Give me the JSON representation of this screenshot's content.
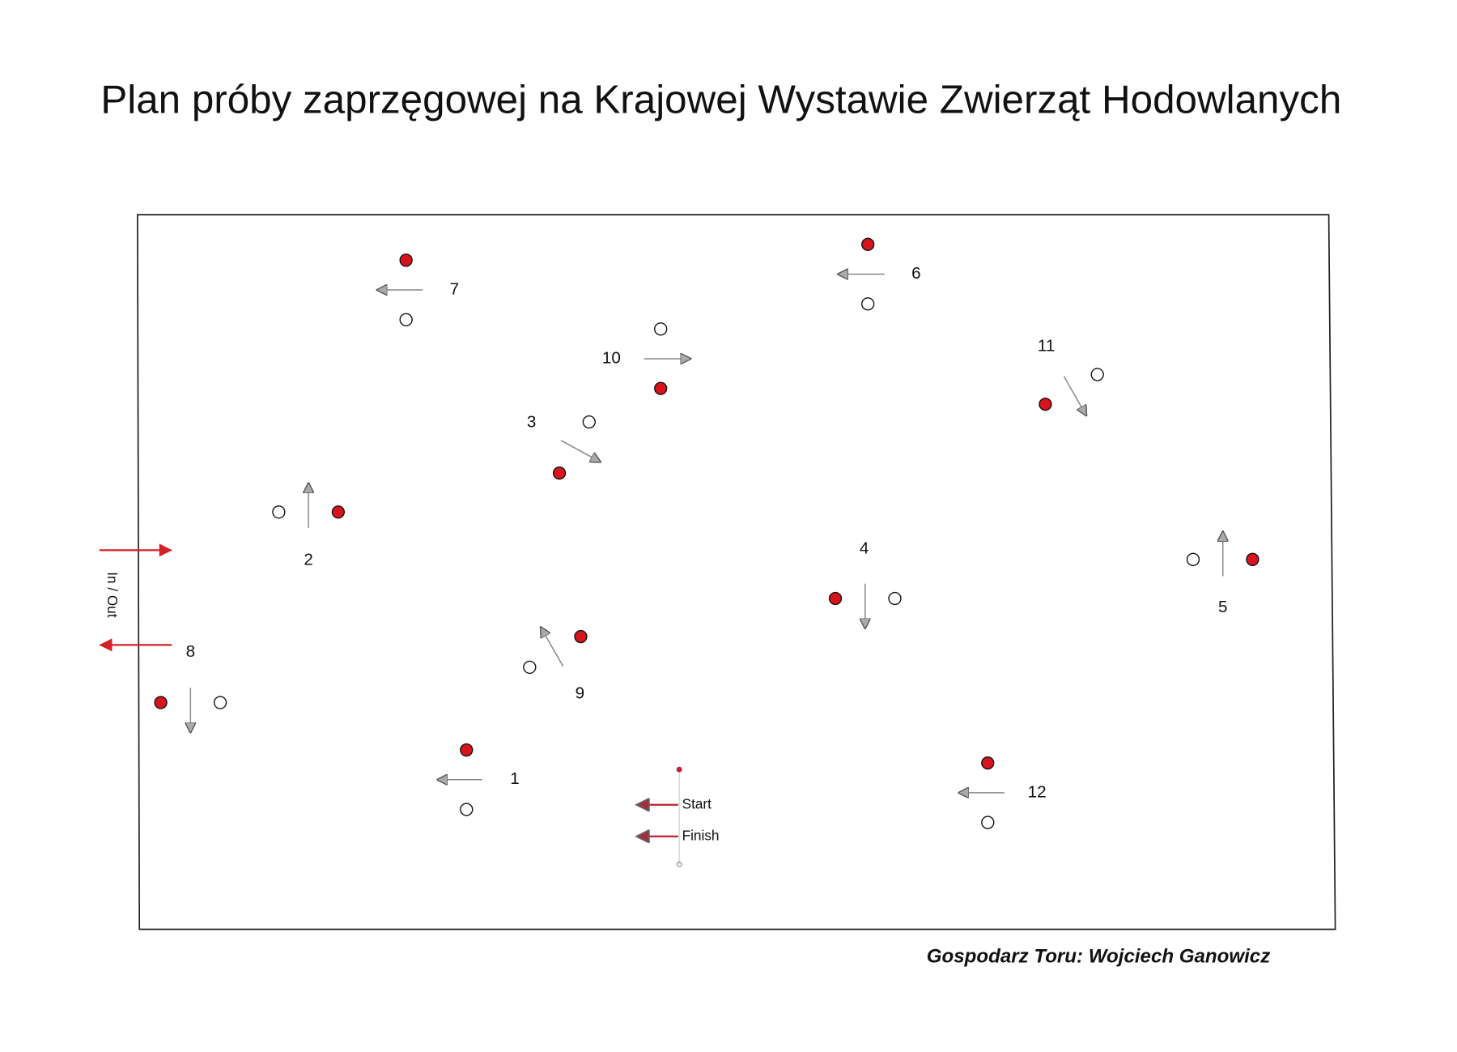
{
  "title": "Plan próby zaprzęgowej na Krajowej Wystawie Zwierząt Hodowlanych",
  "obstacles": [
    "1",
    "2",
    "3",
    "4",
    "5",
    "6",
    "7",
    "8",
    "9",
    "10",
    "11",
    "12"
  ],
  "entrance": {
    "label": "In / Out"
  },
  "start": {
    "label": "Start"
  },
  "finish": {
    "label": "Finish"
  },
  "footer": "Gospodarz Toru: Wojciech Ganowicz"
}
